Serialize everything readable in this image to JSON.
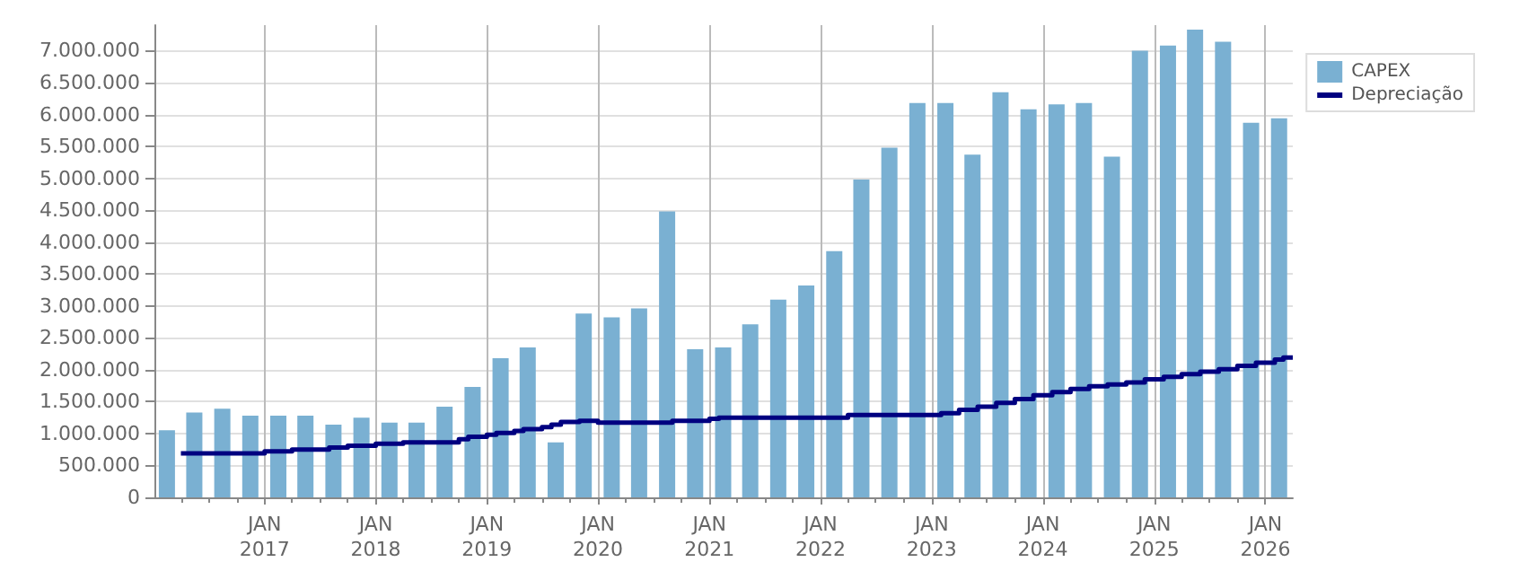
{
  "chart_data": {
    "type": "bar",
    "xlim": [
      "2016-01-05",
      "2026-04-01"
    ],
    "xticks": [
      {
        "value": "2016-04-01",
        "label": null
      },
      {
        "value": "2016-07-01",
        "label": null
      },
      {
        "value": "2016-10-01",
        "label": null
      },
      {
        "value": "2017-01-01",
        "label": "JAN\n2017"
      },
      {
        "value": "2017-04-01",
        "label": null
      },
      {
        "value": "2017-07-01",
        "label": null
      },
      {
        "value": "2017-10-01",
        "label": null
      },
      {
        "value": "2018-01-01",
        "label": "JAN\n2018"
      },
      {
        "value": "2018-04-01",
        "label": null
      },
      {
        "value": "2018-07-01",
        "label": null
      },
      {
        "value": "2018-10-01",
        "label": null
      },
      {
        "value": "2019-01-01",
        "label": "JAN\n2019"
      },
      {
        "value": "2019-04-01",
        "label": null
      },
      {
        "value": "2019-07-01",
        "label": null
      },
      {
        "value": "2019-10-01",
        "label": null
      },
      {
        "value": "2020-01-01",
        "label": "JAN\n2020"
      },
      {
        "value": "2020-04-01",
        "label": null
      },
      {
        "value": "2020-07-01",
        "label": null
      },
      {
        "value": "2020-10-01",
        "label": null
      },
      {
        "value": "2021-01-01",
        "label": "JAN\n2021"
      },
      {
        "value": "2021-04-01",
        "label": null
      },
      {
        "value": "2021-07-01",
        "label": null
      },
      {
        "value": "2021-10-01",
        "label": null
      },
      {
        "value": "2022-01-01",
        "label": "JAN\n2022"
      },
      {
        "value": "2022-04-01",
        "label": null
      },
      {
        "value": "2022-07-01",
        "label": null
      },
      {
        "value": "2022-10-01",
        "label": null
      },
      {
        "value": "2023-01-01",
        "label": "JAN\n2023"
      },
      {
        "value": "2023-04-01",
        "label": null
      },
      {
        "value": "2023-07-01",
        "label": null
      },
      {
        "value": "2023-10-01",
        "label": null
      },
      {
        "value": "2024-01-01",
        "label": "JAN\n2024"
      },
      {
        "value": "2024-04-01",
        "label": null
      },
      {
        "value": "2024-07-01",
        "label": null
      },
      {
        "value": "2024-10-01",
        "label": null
      },
      {
        "value": "2025-01-01",
        "label": "JAN\n2025"
      },
      {
        "value": "2025-04-01",
        "label": null
      },
      {
        "value": "2025-07-01",
        "label": null
      },
      {
        "value": "2025-10-01",
        "label": null
      },
      {
        "value": "2026-01-01",
        "label": "JAN\n2026"
      }
    ],
    "ylim": [
      0,
      7400000
    ],
    "yticks": [
      {
        "value": 0,
        "label": "0"
      },
      {
        "value": 500000,
        "label": "500.000"
      },
      {
        "value": 1000000,
        "label": "1.000.000"
      },
      {
        "value": 1500000,
        "label": "1.500.000"
      },
      {
        "value": 2000000,
        "label": "2.000.000"
      },
      {
        "value": 2500000,
        "label": "2.500.000"
      },
      {
        "value": 3000000,
        "label": "3.000.000"
      },
      {
        "value": 3500000,
        "label": "3.500.000"
      },
      {
        "value": 4000000,
        "label": "4.000.000"
      },
      {
        "value": 4500000,
        "label": "4.500.000"
      },
      {
        "value": 5000000,
        "label": "5.000.000"
      },
      {
        "value": 5500000,
        "label": "5.500.000"
      },
      {
        "value": 6000000,
        "label": "6.000.000"
      },
      {
        "value": 6500000,
        "label": "6.500.000"
      },
      {
        "value": 7000000,
        "label": "7.000.000"
      }
    ],
    "grid": true,
    "legend": "top right",
    "series": [
      {
        "name": "CAPEX",
        "color": "#7ab0d2",
        "x": [
          "2016-02-15",
          "2016-05-15",
          "2016-08-15",
          "2016-11-15",
          "2017-02-15",
          "2017-05-15",
          "2017-08-15",
          "2017-11-15",
          "2018-02-15",
          "2018-05-15",
          "2018-08-15",
          "2018-11-15",
          "2019-02-15",
          "2019-05-15",
          "2019-08-15",
          "2019-11-15",
          "2020-02-15",
          "2020-05-15",
          "2020-08-15",
          "2020-11-15",
          "2021-02-15",
          "2021-05-15",
          "2021-08-15",
          "2021-11-15",
          "2022-02-15",
          "2022-05-15",
          "2022-08-15",
          "2022-11-15",
          "2023-02-15",
          "2023-05-15",
          "2023-08-15",
          "2023-11-15",
          "2024-02-15",
          "2024-05-15",
          "2024-08-15",
          "2024-11-15",
          "2025-02-15",
          "2025-05-15",
          "2025-08-15",
          "2025-11-15",
          "2026-02-15"
        ],
        "values": [
          1050000,
          1330000,
          1390000,
          1280000,
          1280000,
          1280000,
          1140000,
          1250000,
          1170000,
          1170000,
          1420000,
          1730000,
          2180000,
          2350000,
          860000,
          2880000,
          2820000,
          2960000,
          4480000,
          2320000,
          2350000,
          2710000,
          3100000,
          3320000,
          3860000,
          4980000,
          5480000,
          6180000,
          6180000,
          5370000,
          6350000,
          6080000,
          6160000,
          6180000,
          5340000,
          7000000,
          7080000,
          7330000,
          7140000,
          5870000,
          5940000
        ]
      },
      {
        "name": "Depreciação",
        "type": "step",
        "color": "#000080",
        "x": [
          "2016-04",
          "2017-01",
          "2017-04",
          "2017-08",
          "2017-10",
          "2018-01",
          "2018-04",
          "2018-10",
          "2018-11",
          "2019-01",
          "2019-02",
          "2019-04",
          "2019-05",
          "2019-07",
          "2019-08",
          "2019-09",
          "2019-11",
          "2020-01",
          "2020-09",
          "2021-01",
          "2021-02",
          "2022-04",
          "2023-02",
          "2023-04",
          "2023-06",
          "2023-08",
          "2023-10",
          "2023-12",
          "2024-02",
          "2024-04",
          "2024-06",
          "2024-08",
          "2024-10",
          "2024-12",
          "2025-02",
          "2025-04",
          "2025-06",
          "2025-08",
          "2025-10",
          "2025-12",
          "2026-02",
          "2026-03",
          "2026-04"
        ],
        "values": [
          690000,
          720000,
          750000,
          780000,
          810000,
          840000,
          860000,
          910000,
          950000,
          980000,
          1010000,
          1040000,
          1070000,
          1100000,
          1140000,
          1180000,
          1200000,
          1170000,
          1200000,
          1230000,
          1250000,
          1290000,
          1320000,
          1370000,
          1420000,
          1480000,
          1540000,
          1600000,
          1650000,
          1700000,
          1740000,
          1770000,
          1800000,
          1850000,
          1890000,
          1930000,
          1970000,
          2010000,
          2060000,
          2110000,
          2160000,
          2190000,
          2200000
        ]
      }
    ]
  }
}
